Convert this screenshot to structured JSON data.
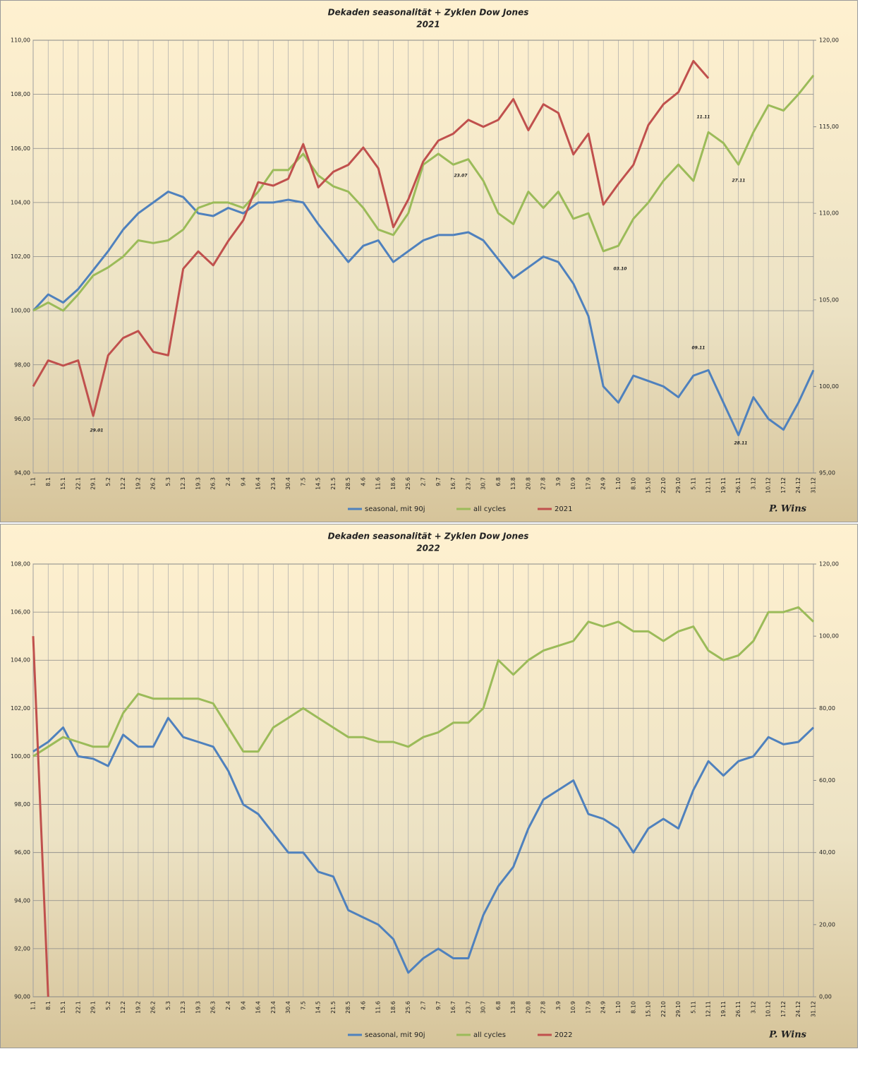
{
  "chart_data": [
    {
      "type": "line",
      "title": "Dekaden seasonalität + Zyklen Dow Jones",
      "subtitle": "2021",
      "signature": "P. Wins",
      "categories": [
        "1.1",
        "8.1",
        "15.1",
        "22.1",
        "29.1",
        "5.2",
        "12.2",
        "19.2",
        "26.2",
        "5.3",
        "12.3",
        "19.3",
        "26.3",
        "2.4",
        "9.4",
        "16.4",
        "23.4",
        "30.4",
        "7.5",
        "14.5",
        "21.5",
        "28.5",
        "4.6",
        "11.6",
        "18.6",
        "25.6",
        "2.7",
        "9.7",
        "16.7",
        "23.7",
        "30.7",
        "6.8",
        "13.8",
        "20.8",
        "27.8",
        "3.9",
        "10.9",
        "17.9",
        "24.9",
        "1.10",
        "8.10",
        "15.10",
        "22.10",
        "29.10",
        "5.11",
        "12.11",
        "19.11",
        "26.11",
        "3.12",
        "10.12",
        "17.12",
        "24.12",
        "31.12"
      ],
      "ylim": [
        94,
        110
      ],
      "yticks": [
        {
          "value": 94,
          "label": "94,00"
        },
        {
          "value": 96,
          "label": "96,00"
        },
        {
          "value": 98,
          "label": "98,00"
        },
        {
          "value": 100,
          "label": "100,00"
        },
        {
          "value": 102,
          "label": "102,00"
        },
        {
          "value": 104,
          "label": "104,00"
        },
        {
          "value": 106,
          "label": "106,00"
        },
        {
          "value": 108,
          "label": "108,00"
        },
        {
          "value": 110,
          "label": "110,00"
        }
      ],
      "y2lim": [
        95,
        120
      ],
      "y2ticks": [
        {
          "value": 95,
          "label": "95,00"
        },
        {
          "value": 100,
          "label": "100,00"
        },
        {
          "value": 105,
          "label": "105,00"
        },
        {
          "value": 110,
          "label": "110,00"
        },
        {
          "value": 115,
          "label": "115,00"
        },
        {
          "value": 120,
          "label": "120,00"
        }
      ],
      "grid": true,
      "series": [
        {
          "name": "seasonal, mit 90j",
          "color": "#4f81bd",
          "values": [
            100.0,
            100.6,
            100.3,
            100.8,
            101.5,
            102.2,
            103.0,
            103.6,
            104.0,
            104.4,
            104.2,
            103.6,
            103.5,
            103.8,
            103.6,
            104.0,
            104.0,
            104.1,
            104.0,
            103.2,
            102.5,
            101.8,
            102.4,
            102.6,
            101.8,
            102.2,
            102.6,
            102.8,
            102.8,
            102.9,
            102.6,
            101.9,
            101.2,
            101.6,
            102.0,
            101.8,
            101.0,
            99.8,
            97.2,
            96.6,
            97.6,
            97.4,
            97.2,
            96.8,
            97.6,
            97.8,
            96.6,
            95.4,
            96.8,
            96.0,
            95.6,
            96.6,
            97.8
          ]
        },
        {
          "name": "all cycles",
          "color": "#9bbb59",
          "values": [
            100.0,
            100.3,
            100.0,
            100.6,
            101.3,
            101.6,
            102.0,
            102.6,
            102.5,
            102.6,
            103.0,
            103.8,
            104.0,
            104.0,
            103.8,
            104.4,
            105.2,
            105.2,
            105.8,
            105.0,
            104.6,
            104.4,
            103.8,
            103.0,
            102.8,
            103.6,
            105.4,
            105.8,
            105.4,
            105.6,
            104.8,
            103.6,
            103.2,
            104.4,
            103.8,
            104.4,
            103.4,
            103.6,
            102.2,
            102.4,
            103.4,
            104.0,
            104.8,
            105.4,
            104.8,
            106.6,
            106.2,
            105.4,
            106.6,
            107.6,
            107.4,
            108.0,
            108.7
          ]
        },
        {
          "name": "2021",
          "color": "#c0504d",
          "axis": "y2",
          "values": [
            100.0,
            101.5,
            101.2,
            101.5,
            98.3,
            101.8,
            102.8,
            103.2,
            102.0,
            101.8,
            106.8,
            107.8,
            107.0,
            108.4,
            109.6,
            111.8,
            111.6,
            112.0,
            114.0,
            111.5,
            112.4,
            112.8,
            113.8,
            112.6,
            109.2,
            110.8,
            113.0,
            114.2,
            114.6,
            115.4,
            115.0,
            115.4,
            116.6,
            114.8,
            116.3,
            115.8,
            113.4,
            114.6,
            110.5,
            111.7,
            112.8,
            115.1,
            116.3,
            117.0,
            118.8,
            117.8,
            null,
            null,
            null,
            null,
            null,
            null,
            null
          ]
        }
      ],
      "annotations": [
        "29.01",
        "23.07",
        "03.10",
        "11.11",
        "09.11",
        "27.11",
        "28.11"
      ]
    },
    {
      "type": "line",
      "title": "Dekaden seasonalität + Zyklen Dow Jones",
      "subtitle": "2022",
      "signature": "P. Wins",
      "categories": [
        "1.1",
        "8.1",
        "15.1",
        "22.1",
        "29.1",
        "5.2",
        "12.2",
        "19.2",
        "26.2",
        "5.3",
        "12.3",
        "19.3",
        "26.3",
        "2.4",
        "9.4",
        "16.4",
        "23.4",
        "30.4",
        "7.5",
        "14.5",
        "21.5",
        "28.5",
        "4.6",
        "11.6",
        "18.6",
        "25.6",
        "2.7",
        "9.7",
        "16.7",
        "23.7",
        "30.7",
        "6.8",
        "13.8",
        "20.8",
        "27.8",
        "3.9",
        "10.9",
        "17.9",
        "24.9",
        "1.10",
        "8.10",
        "15.10",
        "22.10",
        "29.10",
        "5.11",
        "12.11",
        "19.11",
        "26.11",
        "3.12",
        "10.12",
        "17.12",
        "24.12",
        "31.12"
      ],
      "ylim": [
        90,
        108
      ],
      "yticks": [
        {
          "value": 90,
          "label": "90,00"
        },
        {
          "value": 92,
          "label": "92,00"
        },
        {
          "value": 94,
          "label": "94,00"
        },
        {
          "value": 96,
          "label": "96,00"
        },
        {
          "value": 98,
          "label": "98,00"
        },
        {
          "value": 100,
          "label": "100,00"
        },
        {
          "value": 102,
          "label": "102,00"
        },
        {
          "value": 104,
          "label": "104,00"
        },
        {
          "value": 106,
          "label": "106,00"
        },
        {
          "value": 108,
          "label": "108,00"
        }
      ],
      "y2lim": [
        0,
        120
      ],
      "y2ticks": [
        {
          "value": 0,
          "label": "0,00"
        },
        {
          "value": 20,
          "label": "20,00"
        },
        {
          "value": 40,
          "label": "40,00"
        },
        {
          "value": 60,
          "label": "60,00"
        },
        {
          "value": 80,
          "label": "80,00"
        },
        {
          "value": 100,
          "label": "100,00"
        },
        {
          "value": 120,
          "label": "120,00"
        }
      ],
      "grid": true,
      "series": [
        {
          "name": "seasonal, mit 90j",
          "color": "#4f81bd",
          "values": [
            100.2,
            100.6,
            101.2,
            100.0,
            99.9,
            99.6,
            100.9,
            100.4,
            100.4,
            101.6,
            100.8,
            100.6,
            100.4,
            99.4,
            98.0,
            97.6,
            96.8,
            96.0,
            96.0,
            95.2,
            95.0,
            93.6,
            93.3,
            93.0,
            92.4,
            91.0,
            91.6,
            92.0,
            91.6,
            91.6,
            93.4,
            94.6,
            95.4,
            97.0,
            98.2,
            98.6,
            99.0,
            97.6,
            97.4,
            97.0,
            96.0,
            97.0,
            97.4,
            97.0,
            98.6,
            99.8,
            99.2,
            99.8,
            100.0,
            100.8,
            100.5,
            100.6,
            101.2
          ]
        },
        {
          "name": "all cycles",
          "color": "#9bbb59",
          "values": [
            100.0,
            100.4,
            100.8,
            100.6,
            100.4,
            100.4,
            101.8,
            102.6,
            102.4,
            102.4,
            102.4,
            102.4,
            102.2,
            101.2,
            100.2,
            100.2,
            101.2,
            101.6,
            102.0,
            101.6,
            101.2,
            100.8,
            100.8,
            100.6,
            100.6,
            100.4,
            100.8,
            101.0,
            101.4,
            101.4,
            102.0,
            104.0,
            103.4,
            104.0,
            104.4,
            104.6,
            104.8,
            105.6,
            105.4,
            105.6,
            105.2,
            105.2,
            104.8,
            105.2,
            105.4,
            104.4,
            104.0,
            104.2,
            104.8,
            106.0,
            106.0,
            106.2,
            105.6
          ]
        },
        {
          "name": "2022",
          "color": "#c0504d",
          "axis": "y2",
          "values": [
            100,
            0,
            null,
            null,
            null,
            null,
            null,
            null,
            null,
            null,
            null,
            null,
            null,
            null,
            null,
            null,
            null,
            null,
            null,
            null,
            null,
            null,
            null,
            null,
            null,
            null,
            null,
            null,
            null,
            null,
            null,
            null,
            null,
            null,
            null,
            null,
            null,
            null,
            null,
            null,
            null,
            null,
            null,
            null,
            null,
            null,
            null,
            null,
            null,
            null,
            null,
            null,
            null
          ]
        }
      ]
    }
  ]
}
